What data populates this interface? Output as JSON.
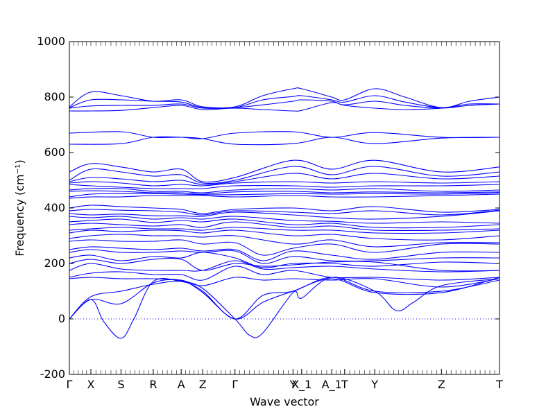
{
  "chart_data": {
    "type": "line",
    "title": "",
    "xlabel": "Wave vector",
    "ylabel": "Frequency (cm⁻¹)",
    "ylim": [
      -200,
      1000
    ],
    "yticks": [
      -200,
      0,
      200,
      400,
      600,
      800,
      1000
    ],
    "grid": false,
    "legend": "none",
    "zero_line": {
      "value": 0,
      "style": "dotted"
    },
    "line_color": "#0000ff",
    "xlim": [
      0,
      100
    ],
    "high_symmetry_points": [
      {
        "label": "Γ",
        "x": 0
      },
      {
        "label": "X",
        "x": 5
      },
      {
        "label": "S",
        "x": 12
      },
      {
        "label": "R",
        "x": 19.5
      },
      {
        "label": "A",
        "x": 26
      },
      {
        "label": "Z",
        "x": 31
      },
      {
        "label": "Γ",
        "x": 38.5
      },
      {
        "label": "Y",
        "x": 52
      },
      {
        "label": "X_1",
        "x": 54
      },
      {
        "label": "A_1",
        "x": 61
      },
      {
        "label": "T",
        "x": 64
      },
      {
        "label": "Y",
        "x": 71
      },
      {
        "label": "Z",
        "x": 86.5
      },
      {
        "label": "T",
        "x": 100
      }
    ],
    "series": [
      {
        "x": [
          0,
          5,
          12,
          19.5,
          26,
          31,
          38.5,
          45,
          52,
          54,
          61,
          64,
          71,
          78,
          86.5,
          93,
          100
        ],
        "y": [
          765,
          818,
          805,
          785,
          790,
          765,
          765,
          805,
          830,
          830,
          800,
          790,
          830,
          800,
          762,
          785,
          800
        ]
      },
      {
        "x": [
          0,
          5,
          12,
          19.5,
          26,
          31,
          38.5,
          45,
          52,
          54,
          61,
          64,
          71,
          78,
          86.5,
          93,
          100
        ],
        "y": [
          762,
          790,
          790,
          785,
          782,
          762,
          762,
          790,
          802,
          805,
          790,
          782,
          805,
          782,
          762,
          775,
          775
        ]
      },
      {
        "x": [
          0,
          5,
          12,
          19.5,
          26,
          31,
          38.5,
          45,
          52,
          54,
          61,
          64,
          71,
          78,
          86.5,
          93,
          100
        ],
        "y": [
          760,
          768,
          770,
          770,
          775,
          760,
          762,
          772,
          785,
          790,
          785,
          772,
          785,
          770,
          760,
          770,
          775
        ]
      },
      {
        "x": [
          0,
          5,
          12,
          19.5,
          26,
          31,
          38.5,
          45,
          52,
          54,
          61,
          64,
          71,
          78,
          86.5,
          93,
          100
        ],
        "y": [
          750,
          750,
          752,
          762,
          770,
          755,
          760,
          755,
          750,
          752,
          780,
          770,
          760,
          755,
          760,
          770,
          775
        ]
      },
      {
        "x": [
          0,
          12,
          19.5,
          26,
          31,
          38.5,
          52,
          61,
          71,
          86.5,
          100
        ],
        "y": [
          670,
          675,
          655,
          655,
          650,
          670,
          675,
          655,
          672,
          655,
          655
        ]
      },
      {
        "x": [
          0,
          12,
          19.5,
          26,
          31,
          38.5,
          52,
          61,
          71,
          86.5,
          100
        ],
        "y": [
          630,
          632,
          655,
          655,
          650,
          630,
          632,
          655,
          632,
          652,
          655
        ]
      },
      {
        "x": [
          0,
          5,
          12,
          19.5,
          26,
          31,
          38.5,
          52,
          61,
          71,
          86.5,
          100
        ],
        "y": [
          530,
          560,
          548,
          530,
          540,
          495,
          510,
          572,
          540,
          572,
          530,
          548
        ]
      },
      {
        "x": [
          0,
          5,
          12,
          19.5,
          26,
          31,
          38.5,
          52,
          61,
          71,
          86.5,
          100
        ],
        "y": [
          500,
          540,
          530,
          515,
          520,
          490,
          500,
          550,
          520,
          550,
          515,
          530
        ]
      },
      {
        "x": [
          0,
          5,
          12,
          19.5,
          26,
          31,
          38.5,
          52,
          61,
          71,
          86.5,
          100
        ],
        "y": [
          495,
          510,
          505,
          495,
          500,
          485,
          495,
          525,
          505,
          525,
          505,
          515
        ]
      },
      {
        "x": [
          0,
          5,
          12,
          19.5,
          26,
          31,
          38.5,
          52,
          61,
          71,
          86.5,
          100
        ],
        "y": [
          490,
          495,
          490,
          480,
          485,
          480,
          490,
          495,
          490,
          495,
          490,
          495
        ]
      },
      {
        "x": [
          0,
          5,
          12,
          19.5,
          26,
          31,
          38.5,
          52,
          61,
          71,
          86.5,
          100
        ],
        "y": [
          485,
          480,
          475,
          470,
          470,
          470,
          480,
          480,
          475,
          480,
          480,
          485
        ]
      },
      {
        "x": [
          0,
          5,
          12,
          19.5,
          26,
          31,
          38.5,
          52,
          61,
          71,
          86.5,
          100
        ],
        "y": [
          465,
          470,
          470,
          460,
          460,
          455,
          465,
          470,
          465,
          470,
          460,
          465
        ]
      },
      {
        "x": [
          0,
          5,
          12,
          19.5,
          26,
          31,
          38.5,
          52,
          61,
          71,
          86.5,
          100
        ],
        "y": [
          460,
          462,
          460,
          455,
          455,
          450,
          458,
          460,
          455,
          458,
          455,
          458
        ]
      },
      {
        "x": [
          0,
          5,
          12,
          19.5,
          26,
          31,
          38.5,
          52,
          61,
          71,
          86.5,
          100
        ],
        "y": [
          440,
          450,
          452,
          452,
          450,
          448,
          448,
          452,
          450,
          452,
          450,
          455
        ]
      },
      {
        "x": [
          0,
          5,
          12,
          19.5,
          26,
          31,
          38.5,
          52,
          61,
          71,
          86.5,
          100
        ],
        "y": [
          435,
          440,
          440,
          445,
          445,
          445,
          440,
          445,
          440,
          440,
          445,
          450
        ]
      },
      {
        "x": [
          0,
          5,
          12,
          19.5,
          26,
          31,
          38.5,
          52,
          61,
          71,
          86.5,
          100
        ],
        "y": [
          400,
          410,
          405,
          400,
          395,
          380,
          395,
          400,
          390,
          405,
          385,
          395
        ]
      },
      {
        "x": [
          0,
          5,
          12,
          19.5,
          26,
          31,
          38.5,
          52,
          61,
          71,
          86.5,
          100
        ],
        "y": [
          390,
          395,
          392,
          390,
          385,
          375,
          390,
          385,
          380,
          390,
          375,
          392
        ]
      },
      {
        "x": [
          0,
          5,
          12,
          19.5,
          26,
          31,
          38.5,
          52,
          61,
          71,
          86.5,
          100
        ],
        "y": [
          380,
          375,
          378,
          372,
          372,
          370,
          385,
          375,
          365,
          360,
          370,
          390
        ]
      },
      {
        "x": [
          0,
          5,
          12,
          19.5,
          26,
          31,
          38.5,
          52,
          61,
          71,
          86.5,
          100
        ],
        "y": [
          370,
          365,
          370,
          360,
          365,
          360,
          370,
          355,
          352,
          345,
          350,
          345
        ]
      },
      {
        "x": [
          0,
          5,
          12,
          19.5,
          26,
          31,
          38.5,
          52,
          61,
          71,
          86.5,
          100
        ],
        "y": [
          350,
          355,
          360,
          348,
          355,
          350,
          360,
          340,
          345,
          330,
          330,
          340
        ]
      },
      {
        "x": [
          0,
          5,
          12,
          19.5,
          26,
          31,
          38.5,
          52,
          61,
          71,
          86.5,
          100
        ],
        "y": [
          340,
          345,
          340,
          335,
          340,
          330,
          350,
          330,
          335,
          320,
          320,
          325
        ]
      },
      {
        "x": [
          0,
          5,
          12,
          19.5,
          26,
          31,
          38.5,
          52,
          61,
          71,
          86.5,
          100
        ],
        "y": [
          320,
          325,
          330,
          325,
          325,
          320,
          330,
          320,
          320,
          310,
          310,
          320
        ]
      },
      {
        "x": [
          0,
          5,
          12,
          19.5,
          26,
          31,
          38.5,
          52,
          61,
          71,
          86.5,
          100
        ],
        "y": [
          310,
          320,
          315,
          320,
          318,
          310,
          320,
          300,
          305,
          290,
          285,
          300
        ]
      },
      {
        "x": [
          0,
          5,
          12,
          19.5,
          26,
          31,
          38.5,
          52,
          61,
          71,
          86.5,
          100
        ],
        "y": [
          290,
          300,
          305,
          300,
          300,
          295,
          300,
          270,
          285,
          260,
          275,
          275
        ]
      },
      {
        "x": [
          0,
          5,
          12,
          19.5,
          26,
          31,
          38.5,
          45,
          52,
          61,
          71,
          86.5,
          100
        ],
        "y": [
          280,
          285,
          280,
          280,
          285,
          270,
          275,
          230,
          255,
          270,
          240,
          270,
          270
        ]
      },
      {
        "x": [
          0,
          5,
          12,
          19.5,
          26,
          31,
          38.5,
          45,
          52,
          61,
          71,
          86.5,
          100
        ],
        "y": [
          250,
          260,
          255,
          250,
          255,
          245,
          250,
          210,
          245,
          230,
          215,
          240,
          240
        ]
      },
      {
        "x": [
          0,
          5,
          12,
          19.5,
          26,
          31,
          38.5,
          45,
          52,
          61,
          71,
          86.5,
          100
        ],
        "y": [
          240,
          250,
          240,
          240,
          245,
          240,
          245,
          200,
          225,
          210,
          210,
          220,
          220
        ]
      },
      {
        "x": [
          0,
          5,
          12,
          19.5,
          26,
          31,
          38.5,
          45,
          52,
          61,
          71,
          86.5,
          100
        ],
        "y": [
          220,
          230,
          210,
          225,
          220,
          240,
          220,
          185,
          200,
          200,
          190,
          205,
          200
        ]
      },
      {
        "x": [
          0,
          5,
          12,
          19.5,
          26,
          31,
          38.5,
          45,
          52,
          61,
          71,
          86.5,
          100
        ],
        "y": [
          200,
          215,
          200,
          215,
          215,
          175,
          200,
          190,
          195,
          205,
          205,
          175,
          175
        ]
      },
      {
        "x": [
          0,
          5,
          12,
          19.5,
          26,
          31,
          38.5,
          45,
          52,
          61,
          71,
          86.5,
          100
        ],
        "y": [
          175,
          200,
          180,
          175,
          175,
          175,
          210,
          180,
          185,
          190,
          180,
          170,
          175
        ]
      },
      {
        "x": [
          0,
          5,
          12,
          19.5,
          26,
          31,
          38.5,
          45,
          52,
          61,
          71,
          86.5,
          100
        ],
        "y": [
          150,
          165,
          170,
          160,
          160,
          140,
          190,
          160,
          175,
          150,
          150,
          140,
          150
        ]
      },
      {
        "x": [
          0,
          5,
          12,
          19.5,
          26,
          31,
          38.5,
          45,
          52,
          61,
          71,
          86.5,
          100
        ],
        "y": [
          145,
          150,
          145,
          145,
          140,
          120,
          150,
          140,
          145,
          140,
          145,
          115,
          145
        ]
      },
      {
        "x": [
          0,
          5,
          12,
          19.5,
          26,
          31,
          38.5,
          45,
          52,
          61,
          71,
          86.5,
          100
        ],
        "y": [
          0,
          80,
          100,
          125,
          135,
          100,
          0,
          85,
          100,
          150,
          100,
          100,
          140
        ]
      },
      {
        "x": [
          0,
          5,
          12,
          19.5,
          26,
          31,
          38.5,
          45,
          52,
          61,
          71,
          86.5,
          100
        ],
        "y": [
          0,
          70,
          55,
          130,
          138,
          95,
          0,
          60,
          100,
          145,
          95,
          95,
          150
        ]
      },
      {
        "x": [
          0,
          5,
          8,
          12,
          15,
          19.5,
          26,
          31,
          38.5,
          42,
          45,
          52,
          54,
          61,
          71,
          76,
          80,
          86.5,
          100
        ],
        "y": [
          0,
          70,
          -10,
          -70,
          0,
          135,
          135,
          110,
          0,
          -60,
          -50,
          95,
          75,
          150,
          100,
          30,
          60,
          120,
          145
        ]
      }
    ]
  }
}
